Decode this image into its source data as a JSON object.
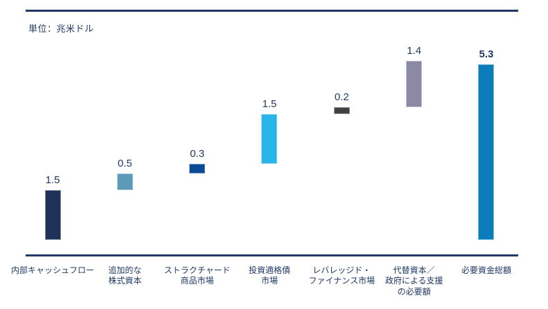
{
  "header": {
    "unit_label": "単位：兆米ドル"
  },
  "chart_data": {
    "type": "bar",
    "subtype": "waterfall",
    "title": "",
    "unit": "兆米ドル",
    "categories": [
      "内部キャッシュフロー",
      "追加的な\n株式資本",
      "ストラクチャード\n商品市場",
      "投資適格債\n市場",
      "レバレッジド・\nファイナンス市場",
      "代替資本／\n政府による支援\nの必要額",
      "必要資金総額"
    ],
    "values": [
      1.5,
      0.5,
      0.3,
      1.5,
      0.2,
      1.4,
      5.3
    ],
    "value_labels": [
      "1.5",
      "0.5",
      "0.3",
      "1.5",
      "0.2",
      "1.4",
      "5.3"
    ],
    "bases": [
      0,
      1.5,
      2.0,
      2.3,
      3.8,
      4.0,
      0
    ],
    "total_index": 6,
    "bar_colors": [
      "#1F3257",
      "#5B9AB9",
      "#0A4A96",
      "#29B5E8",
      "#404040",
      "#8B89A6",
      "#0C7CBB"
    ],
    "text_color": "#1F3864",
    "axis_color": "#1F3864",
    "ylim": [
      0,
      6.5
    ],
    "grid": false,
    "legend": "none",
    "value_label_position": "above"
  }
}
